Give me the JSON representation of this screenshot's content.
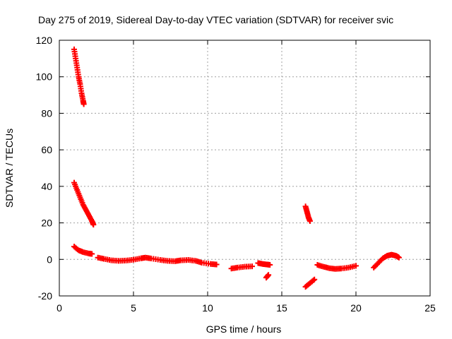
{
  "chart_data": {
    "type": "scatter",
    "title": "Day 275 of 2019, Sidereal Day-to-day VTEC variation (SDTVAR) for receiver svic",
    "xlabel": "GPS time / hours",
    "ylabel": "SDTVAR / TECUs",
    "xlim": [
      0,
      25
    ],
    "ylim": [
      -20,
      120
    ],
    "xticks": [
      0,
      5,
      10,
      15,
      20,
      25
    ],
    "yticks": [
      -20,
      0,
      20,
      40,
      60,
      80,
      100,
      120
    ],
    "grid": true,
    "marker": "+",
    "color": "#ff0000",
    "series": [
      {
        "segments": [
          [
            [
              1.0,
              115
            ],
            [
              1.1,
              110
            ],
            [
              1.2,
              105
            ],
            [
              1.3,
              100
            ],
            [
              1.4,
              96
            ],
            [
              1.5,
              91
            ],
            [
              1.6,
              87
            ],
            [
              1.65,
              85
            ]
          ],
          [
            [
              1.0,
              42
            ],
            [
              1.2,
              38
            ],
            [
              1.4,
              34
            ],
            [
              1.6,
              30
            ],
            [
              1.8,
              27
            ],
            [
              2.0,
              24
            ],
            [
              2.2,
              21
            ],
            [
              2.3,
              19
            ]
          ],
          [
            [
              1.0,
              7
            ],
            [
              1.3,
              5
            ],
            [
              1.6,
              4
            ],
            [
              2.0,
              3.2
            ],
            [
              2.2,
              3
            ]
          ],
          [
            [
              2.6,
              1
            ],
            [
              3.0,
              0.3
            ],
            [
              3.5,
              -0.5
            ],
            [
              4.0,
              -0.8
            ],
            [
              4.5,
              -0.6
            ],
            [
              5.0,
              -0.2
            ],
            [
              5.5,
              0.6
            ],
            [
              5.8,
              1
            ],
            [
              6.2,
              0.5
            ],
            [
              6.8,
              -0.3
            ],
            [
              7.3,
              -0.8
            ],
            [
              7.8,
              -1
            ],
            [
              8.2,
              -0.5
            ],
            [
              8.7,
              -0.3
            ],
            [
              9.2,
              -0.8
            ],
            [
              9.6,
              -1.8
            ],
            [
              10.2,
              -2.5
            ],
            [
              10.6,
              -2.8
            ]
          ],
          [
            [
              11.6,
              -5
            ],
            [
              12.0,
              -4.5
            ],
            [
              12.5,
              -4
            ],
            [
              13.0,
              -3.8
            ]
          ],
          [
            [
              13.4,
              -2
            ],
            [
              13.7,
              -2.5
            ],
            [
              14.0,
              -2.8
            ],
            [
              14.2,
              -3
            ]
          ],
          [
            [
              13.95,
              -10
            ],
            [
              14.1,
              -8.5
            ]
          ],
          [
            [
              16.6,
              -15
            ],
            [
              16.9,
              -13
            ],
            [
              17.2,
              -11
            ]
          ],
          [
            [
              16.6,
              29
            ],
            [
              16.7,
              26
            ],
            [
              16.8,
              23
            ],
            [
              16.9,
              21
            ]
          ],
          [
            [
              17.4,
              -3
            ],
            [
              17.8,
              -4
            ],
            [
              18.2,
              -4.8
            ],
            [
              18.6,
              -5.2
            ],
            [
              19.0,
              -5
            ],
            [
              19.5,
              -4.5
            ],
            [
              20.0,
              -3.5
            ]
          ],
          [
            [
              21.2,
              -4.5
            ],
            [
              21.5,
              -2
            ],
            [
              21.8,
              0.5
            ],
            [
              22.1,
              2
            ],
            [
              22.4,
              2.6
            ],
            [
              22.7,
              2
            ],
            [
              22.9,
              1
            ]
          ]
        ]
      }
    ]
  }
}
